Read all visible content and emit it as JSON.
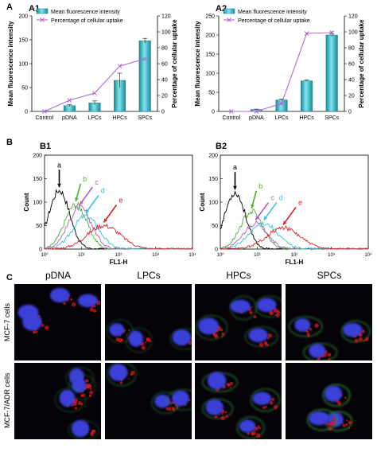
{
  "chart_data": [
    {
      "id": "A1",
      "type": "bar",
      "panel_label": "A1",
      "categories": [
        "Control",
        "pDNA",
        "LPCs",
        "HPCs",
        "SPCs"
      ],
      "series": [
        {
          "name": "Mean fluorescence intensity",
          "values": [
            0,
            12,
            18,
            65,
            148
          ],
          "errors": [
            0,
            2,
            4,
            15,
            5
          ],
          "axis": "left",
          "color": "#2fb8c2"
        },
        {
          "name": "Percentage of cellular uptake",
          "values": [
            0,
            14,
            23,
            57,
            66
          ],
          "axis": "right",
          "color": "#b36ad6"
        }
      ],
      "ylabel_left": "Mean fluorescence intensity",
      "ylabel_right": "Percentage of cellular uptake",
      "ylim_left": [
        0,
        200
      ],
      "yticks_left": [
        "0",
        "50",
        "100",
        "150",
        "200"
      ],
      "ylim_right": [
        0,
        120
      ],
      "yticks_right": [
        "0",
        "20",
        "40",
        "60",
        "80",
        "100",
        "120"
      ],
      "legend_position": "top-left"
    },
    {
      "id": "A2",
      "type": "bar",
      "panel_label": "A2",
      "categories": [
        "Control",
        "pDNA",
        "LPCs",
        "HPCs",
        "SPCs"
      ],
      "series": [
        {
          "name": "Mean fluorescence intensity",
          "values": [
            0,
            5,
            30,
            80,
            200
          ],
          "errors": [
            0,
            1,
            2,
            2,
            4
          ],
          "axis": "left",
          "color": "#2fb8c2"
        },
        {
          "name": "Percentage of cellular uptake",
          "values": [
            0,
            0,
            10,
            98,
            99
          ],
          "errors": [
            0,
            0,
            1,
            1,
            2
          ],
          "axis": "right",
          "color": "#b36ad6"
        }
      ],
      "ylabel_left": "Mean fluorescence intensity",
      "ylabel_right": "Percentage of cellular uptake",
      "ylim_left": [
        0,
        250
      ],
      "yticks_left": [
        "0",
        "50",
        "100",
        "150",
        "200",
        "250"
      ],
      "ylim_right": [
        0,
        120
      ],
      "yticks_right": [
        "0",
        "20",
        "40",
        "60",
        "80",
        "100",
        "120"
      ],
      "legend_position": "top-left"
    },
    {
      "id": "B1",
      "type": "line",
      "panel_label": "B1",
      "xlabel": "FL1-H",
      "ylabel": "Count",
      "xscale": "log",
      "xlim": [
        1,
        10000
      ],
      "xticks": [
        "10⁰",
        "10¹",
        "10²",
        "10³",
        "10⁴"
      ],
      "ylim": [
        0,
        200
      ],
      "yticks": [
        "0",
        "50",
        "100",
        "150",
        "200"
      ],
      "series": [
        {
          "name": "a",
          "color": "#000000",
          "peak_x": 2.5,
          "peak_y": 125,
          "width_decades": 0.28
        },
        {
          "name": "b",
          "color": "#4caf32",
          "peak_x": 7,
          "peak_y": 95,
          "width_decades": 0.3
        },
        {
          "name": "c",
          "color": "#b35ac8",
          "peak_x": 9,
          "peak_y": 88,
          "width_decades": 0.32
        },
        {
          "name": "d",
          "color": "#3cc0d6",
          "peak_x": 13,
          "peak_y": 70,
          "width_decades": 0.35
        },
        {
          "name": "e",
          "color": "#e02020",
          "peak_x": 40,
          "peak_y": 50,
          "width_decades": 0.45
        }
      ]
    },
    {
      "id": "B2",
      "type": "line",
      "panel_label": "B2",
      "xlabel": "FL1-H",
      "ylabel": "Count",
      "xscale": "log",
      "xlim": [
        1,
        10000
      ],
      "xticks": [
        "10⁰",
        "10¹",
        "10²",
        "10³",
        "10⁴"
      ],
      "ylim": [
        0,
        200
      ],
      "yticks": [
        "0",
        "50",
        "100",
        "150",
        "200"
      ],
      "series": [
        {
          "name": "a",
          "color": "#000000",
          "peak_x": 2.5,
          "peak_y": 120,
          "width_decades": 0.28
        },
        {
          "name": "b",
          "color": "#4caf32",
          "peak_x": 7,
          "peak_y": 80,
          "width_decades": 0.3
        },
        {
          "name": "c",
          "color": "#b35ac8",
          "peak_x": 9,
          "peak_y": 55,
          "width_decades": 0.32
        },
        {
          "name": "d",
          "color": "#3cc0d6",
          "peak_x": 15,
          "peak_y": 55,
          "width_decades": 0.38
        },
        {
          "name": "e",
          "color": "#e02020",
          "peak_x": 50,
          "peak_y": 45,
          "width_decades": 0.45
        }
      ]
    }
  ],
  "section_labels": {
    "a": "A",
    "b": "B",
    "c": "C"
  },
  "micrographs": {
    "columns": [
      "pDNA",
      "LPCs",
      "HPCs",
      "SPCs"
    ],
    "rows": [
      "MCF-7 cells",
      "MCF-7/ADR cells"
    ],
    "colors": {
      "background": "#050308",
      "nucleus": "#3a3fd8",
      "red_signal": "#d21a1a",
      "green_signal": "#2f8a3a"
    }
  }
}
